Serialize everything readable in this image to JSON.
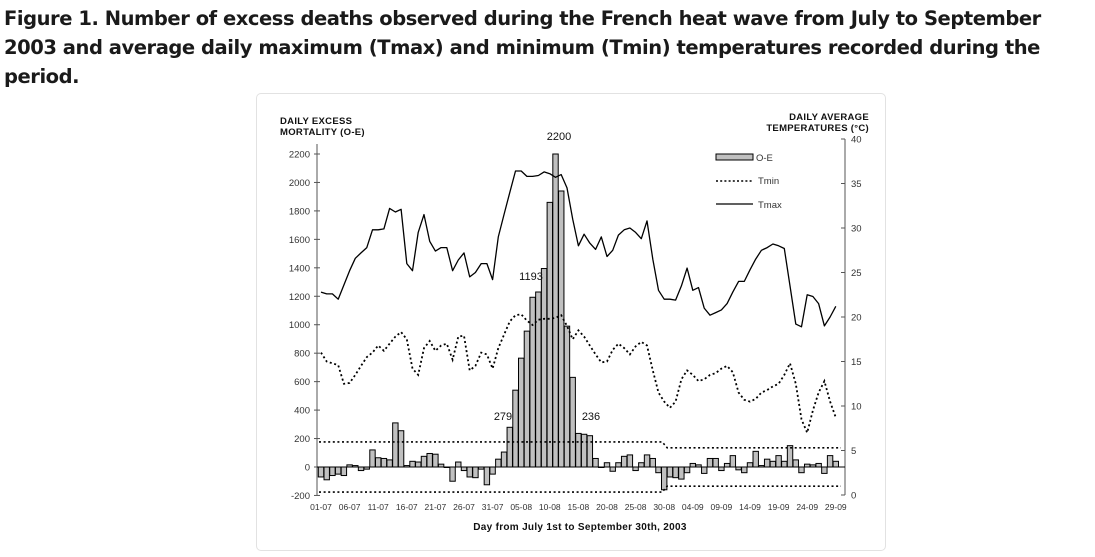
{
  "caption": "Figure 1. Number of excess deaths observed during the French heat wave from July to September 2003 and average daily maximum (Tmax) and minimum (Tmin) temperatures recorded during the period.",
  "chart_data": {
    "type": "bar",
    "title": "Figure 1. Number of excess deaths observed during the French heat wave from July to September 2003 and average daily maximum (Tmax) and minimum (Tmin) temperatures recorded during the period.",
    "xlabel": "Day from July 1st to September 30th, 2003",
    "ylabel_left": [
      "DAILY EXCESS",
      "MORTALITY (O-E)"
    ],
    "ylabel_right": [
      "DAILY AVERAGE",
      "TEMPERATURES (°C)"
    ],
    "ylim_left": [
      -200,
      2200
    ],
    "ylim_right": [
      0,
      40
    ],
    "yticks_left": [
      "-200",
      "0",
      "200",
      "400",
      "600",
      "800",
      "1000",
      "1200",
      "1400",
      "1600",
      "1800",
      "2000",
      "2200"
    ],
    "yticks_right": [
      "0",
      "5",
      "10",
      "15",
      "20",
      "25",
      "30",
      "35",
      "40"
    ],
    "xtick_labels": [
      "01-07",
      "06-07",
      "11-07",
      "16-07",
      "21-07",
      "26-07",
      "31-07",
      "05-08",
      "10-08",
      "15-08",
      "20-08",
      "25-08",
      "30-08",
      "04-09",
      "09-09",
      "14-09",
      "19-09",
      "24-09",
      "29-09"
    ],
    "grid": false,
    "legend": {
      "position": "top-right",
      "entries": [
        "O-E",
        "Tmin",
        "Tmax"
      ]
    },
    "annotations": [
      "2200",
      "1193",
      "279",
      "236"
    ],
    "series": [
      {
        "name": "O-E",
        "kind": "bar",
        "axis": "left",
        "values": [
          -70,
          -90,
          -60,
          -50,
          -60,
          15,
          10,
          -25,
          -15,
          120,
          65,
          60,
          50,
          310,
          255,
          10,
          40,
          35,
          75,
          95,
          90,
          20,
          0,
          -100,
          35,
          -25,
          -70,
          -75,
          -15,
          -125,
          -50,
          55,
          105,
          279,
          540,
          765,
          955,
          1193,
          1230,
          1395,
          1860,
          2200,
          1940,
          990,
          630,
          236,
          230,
          220,
          60,
          0,
          30,
          -30,
          30,
          75,
          85,
          -25,
          30,
          85,
          60,
          -40,
          -160,
          -70,
          -75,
          -85,
          -40,
          25,
          15,
          -45,
          60,
          60,
          -25,
          25,
          80,
          -20,
          -40,
          30,
          110,
          10,
          55,
          40,
          80,
          40,
          150,
          50,
          -40,
          20,
          15,
          25,
          -45,
          80,
          40
        ]
      },
      {
        "name": "Tmin",
        "kind": "line-dotted",
        "axis": "right",
        "values": [
          16.0,
          15.0,
          14.8,
          14.6,
          12.5,
          12.6,
          13.5,
          14.5,
          15.5,
          16.0,
          16.8,
          16.2,
          17.0,
          17.8,
          18.3,
          17.5,
          14.2,
          13.5,
          16.5,
          17.3,
          16.2,
          16.8,
          17.0,
          15.2,
          17.8,
          17.9,
          14.0,
          14.5,
          16.0,
          15.8,
          14.2,
          16.5,
          18.0,
          19.5,
          20.2,
          20.3,
          19.6,
          19.1,
          19.7,
          19.8,
          19.8,
          19.9,
          20.2,
          19.0,
          17.5,
          18.5,
          17.8,
          16.8,
          15.8,
          14.9,
          15.0,
          16.3,
          17.0,
          16.5,
          15.8,
          16.7,
          17.2,
          16.8,
          14.0,
          11.5,
          10.5,
          9.8,
          10.5,
          13.0,
          14.0,
          13.5,
          12.8,
          13.0,
          13.5,
          13.7,
          14.2,
          14.5,
          13.8,
          11.5,
          10.7,
          10.5,
          10.8,
          11.5,
          11.8,
          12.2,
          12.5,
          13.5,
          14.8,
          12.5,
          8.5,
          7.0,
          9.5,
          11.5,
          12.8,
          10.5,
          8.7
        ]
      },
      {
        "name": "Tmax",
        "kind": "line-solid",
        "axis": "right",
        "values": [
          22.8,
          22.6,
          22.6,
          22.0,
          23.6,
          25.2,
          26.6,
          27.2,
          27.8,
          29.8,
          29.8,
          29.9,
          32.2,
          31.8,
          32.1,
          26.0,
          25.2,
          29.5,
          31.5,
          28.5,
          27.4,
          27.8,
          27.8,
          25.2,
          26.4,
          27.2,
          24.5,
          25.0,
          26.0,
          26.0,
          24.2,
          29.0,
          31.5,
          34.0,
          36.4,
          36.4,
          35.8,
          35.8,
          35.9,
          36.3,
          36.1,
          35.7,
          36.0,
          34.5,
          31.0,
          28.0,
          29.3,
          28.3,
          27.6,
          29.0,
          26.8,
          27.5,
          29.2,
          29.8,
          30.0,
          29.5,
          28.8,
          30.8,
          26.5,
          23.0,
          22.0,
          22.0,
          21.9,
          23.5,
          25.5,
          23.0,
          23.3,
          21.0,
          20.2,
          20.5,
          20.8,
          21.5,
          22.8,
          24.0,
          24.0,
          25.3,
          26.5,
          27.5,
          27.8,
          28.2,
          28.0,
          27.7,
          23.5,
          19.2,
          18.9,
          22.5,
          22.3,
          21.5,
          19.0,
          20.0,
          21.2
        ]
      },
      {
        "name": "Upper threshold",
        "kind": "line-dotted",
        "axis": "left",
        "values_by_segment": [
          {
            "from": "01-07",
            "to": "30-08",
            "value": 176
          },
          {
            "from": "31-08",
            "to": "30-09",
            "value": 135
          }
        ]
      },
      {
        "name": "Lower threshold",
        "kind": "line-dotted",
        "axis": "left",
        "values_by_segment": [
          {
            "from": "01-07",
            "to": "30-08",
            "value": -176
          },
          {
            "from": "31-08",
            "to": "30-09",
            "value": -135
          }
        ]
      }
    ],
    "colors": {
      "bar_fill": "#c0c0c0",
      "bar_stroke": "#000000",
      "line": "#000000"
    }
  }
}
